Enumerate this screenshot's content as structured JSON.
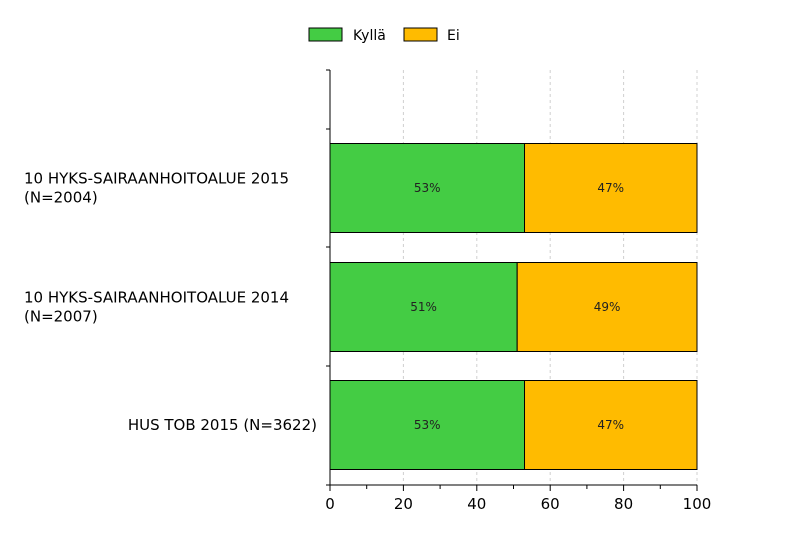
{
  "chart_data": {
    "type": "bar",
    "orientation": "horizontal",
    "stacked": true,
    "categories": [
      [
        "10 HYKS-SAIRAANHOITOALUE 2015",
        "(N=2004)"
      ],
      [
        "10 HYKS-SAIRAANHOITOALUE 2014",
        "(N=2007)"
      ],
      [
        "HUS TOB 2015 (N=3622)"
      ]
    ],
    "series": [
      {
        "name": "Kyllä",
        "color": "#44cc44",
        "values": [
          53,
          51,
          53
        ],
        "labels": [
          "53%",
          "51%",
          "53%"
        ]
      },
      {
        "name": "Ei",
        "color": "#ffbb00",
        "values": [
          47,
          49,
          47
        ],
        "labels": [
          "47%",
          "49%",
          "47%"
        ]
      }
    ],
    "xlim": [
      0,
      100
    ],
    "xticks": [
      "0",
      "20",
      "40",
      "60",
      "80",
      "100"
    ],
    "grid": true,
    "legend_position": "top"
  }
}
